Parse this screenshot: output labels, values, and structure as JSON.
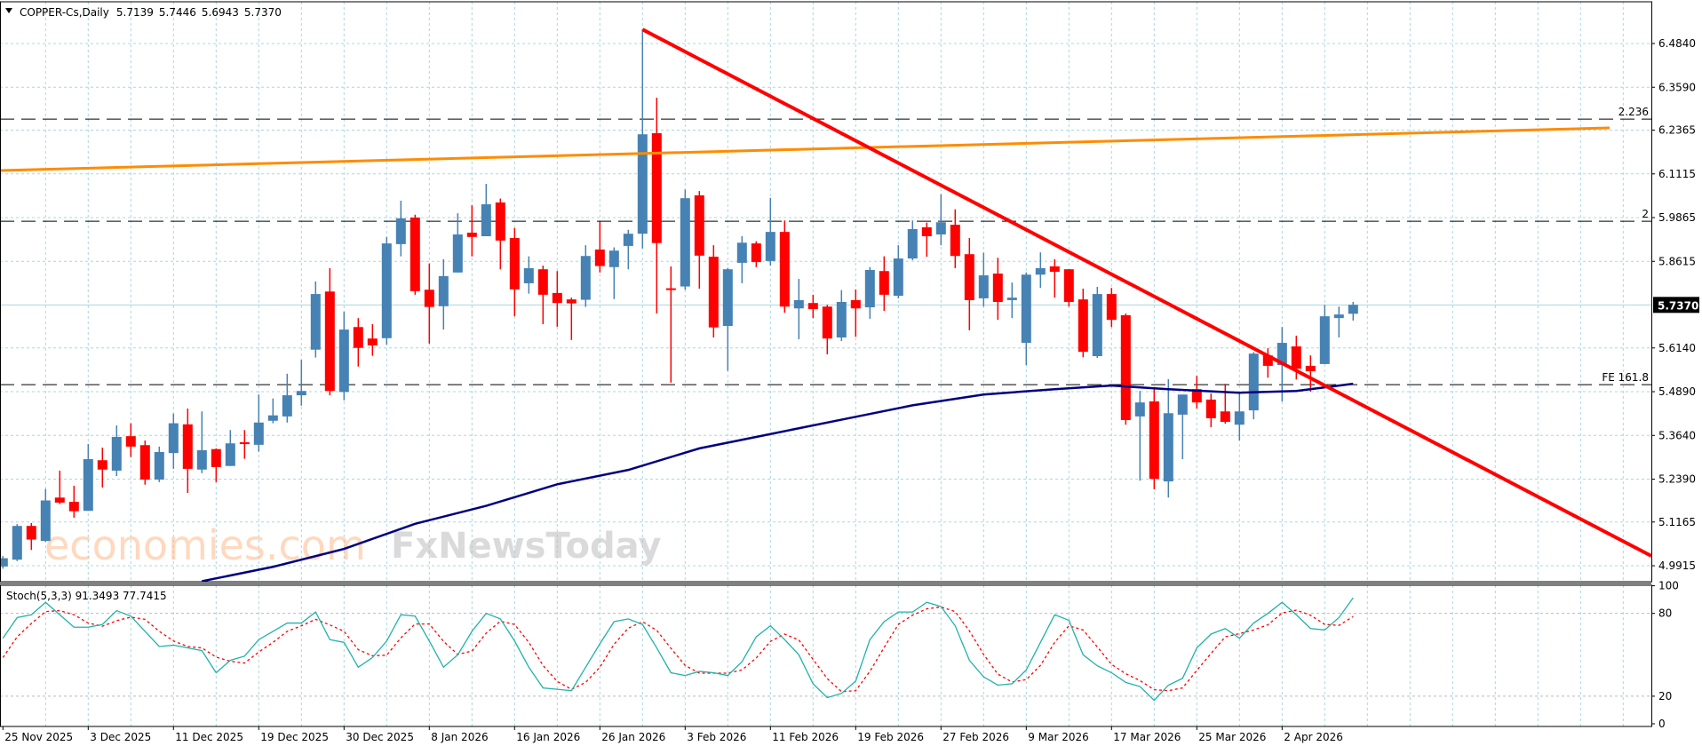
{
  "header": {
    "symbol_period": "COPPER-Cs,Daily",
    "open": "5.7139",
    "high": "5.7446",
    "low": "5.6943",
    "close": "5.7370"
  },
  "indicator_label": "Stoch(5,3,3) 91.3493 77.7415",
  "current_price_label": "5.7370",
  "watermarks": [
    "economies.com",
    "FxNewsToday"
  ],
  "colors": {
    "bull": "#4682B4",
    "bear": "#FF0000",
    "grid": "#A9D8DF",
    "ma": "#000080",
    "resistance": "#FF8C00",
    "trendline": "#FF0000",
    "stoch_k": "#20B2AA",
    "stoch_d": "#FF0000"
  },
  "chart_data": [
    {
      "type": "candlestick",
      "title": "COPPER-Cs,Daily",
      "price_axis_ticks": [
        "6.4840",
        "6.3590",
        "6.2365",
        "6.1115",
        "5.9865",
        "5.8615",
        "5.6140",
        "5.4890",
        "5.3640",
        "5.2390",
        "5.1165",
        "4.9915"
      ],
      "date_labels": [
        "25 Nov 2025",
        "3 Dec 2025",
        "11 Dec 2025",
        "19 Dec 2025",
        "30 Dec 2025",
        "8 Jan 2026",
        "16 Jan 2026",
        "26 Jan 2026",
        "3 Feb 2026",
        "11 Feb 2026",
        "19 Feb 2026",
        "27 Feb 2026",
        "9 Mar 2026",
        "17 Mar 2026",
        "25 Mar 2026",
        "2 Apr 2026"
      ],
      "date_label_every_bars": 6,
      "ylim": [
        4.99,
        6.53
      ],
      "ohlc": [
        [
          5.031,
          5.06,
          5.025,
          5.054
        ],
        [
          5.05,
          5.149,
          5.046,
          5.144
        ],
        [
          5.144,
          5.152,
          5.077,
          5.106
        ],
        [
          5.102,
          5.247,
          5.1,
          5.215
        ],
        [
          5.223,
          5.298,
          5.205,
          5.209
        ],
        [
          5.211,
          5.256,
          5.167,
          5.185
        ],
        [
          5.186,
          5.372,
          5.186,
          5.33
        ],
        [
          5.327,
          5.362,
          5.251,
          5.301
        ],
        [
          5.298,
          5.424,
          5.283,
          5.392
        ],
        [
          5.394,
          5.43,
          5.336,
          5.365
        ],
        [
          5.369,
          5.382,
          5.259,
          5.273
        ],
        [
          5.273,
          5.365,
          5.266,
          5.35
        ],
        [
          5.347,
          5.457,
          5.303,
          5.43
        ],
        [
          5.427,
          5.471,
          5.236,
          5.303
        ],
        [
          5.301,
          5.463,
          5.291,
          5.355
        ],
        [
          5.358,
          5.36,
          5.266,
          5.308
        ],
        [
          5.311,
          5.411,
          5.311,
          5.374
        ],
        [
          5.377,
          5.411,
          5.331,
          5.372
        ],
        [
          5.37,
          5.51,
          5.351,
          5.432
        ],
        [
          5.437,
          5.499,
          5.43,
          5.452
        ],
        [
          5.449,
          5.568,
          5.432,
          5.508
        ],
        [
          5.508,
          5.607,
          5.479,
          5.52
        ],
        [
          5.635,
          5.825,
          5.613,
          5.79
        ],
        [
          5.797,
          5.862,
          5.508,
          5.52
        ],
        [
          5.517,
          5.741,
          5.494,
          5.691
        ],
        [
          5.698,
          5.723,
          5.588,
          5.64
        ],
        [
          5.666,
          5.706,
          5.618,
          5.647
        ],
        [
          5.667,
          5.949,
          5.649,
          5.931
        ],
        [
          5.929,
          6.05,
          5.895,
          6.001
        ],
        [
          6.003,
          6.011,
          5.788,
          5.798
        ],
        [
          5.802,
          5.875,
          5.652,
          5.754
        ],
        [
          5.756,
          5.887,
          5.691,
          5.84
        ],
        [
          5.85,
          6.015,
          5.85,
          5.956
        ],
        [
          5.961,
          6.037,
          5.895,
          5.949
        ],
        [
          5.951,
          6.097,
          5.951,
          6.04
        ],
        [
          6.045,
          6.056,
          5.859,
          5.939
        ],
        [
          5.946,
          5.974,
          5.728,
          5.803
        ],
        [
          5.82,
          5.895,
          5.791,
          5.862
        ],
        [
          5.859,
          5.869,
          5.706,
          5.788
        ],
        [
          5.793,
          5.854,
          5.699,
          5.765
        ],
        [
          5.775,
          5.78,
          5.662,
          5.764
        ],
        [
          5.774,
          5.926,
          5.754,
          5.896
        ],
        [
          5.914,
          5.992,
          5.85,
          5.868
        ],
        [
          5.865,
          5.92,
          5.776,
          5.911
        ],
        [
          5.924,
          5.969,
          5.859,
          5.958
        ],
        [
          5.958,
          6.527,
          5.917,
          6.235
        ],
        [
          6.238,
          6.337,
          5.736,
          5.932
        ],
        [
          5.806,
          5.867,
          5.543,
          5.804
        ],
        [
          5.811,
          6.081,
          5.802,
          6.057
        ],
        [
          6.065,
          6.077,
          5.805,
          5.897
        ],
        [
          5.894,
          5.926,
          5.669,
          5.697
        ],
        [
          5.701,
          5.863,
          5.576,
          5.859
        ],
        [
          5.877,
          5.951,
          5.82,
          5.933
        ],
        [
          5.931,
          5.937,
          5.865,
          5.879
        ],
        [
          5.882,
          6.058,
          5.869,
          5.963
        ],
        [
          5.963,
          5.995,
          5.738,
          5.755
        ],
        [
          5.75,
          5.832,
          5.664,
          5.773
        ],
        [
          5.765,
          5.788,
          5.723,
          5.748
        ],
        [
          5.755,
          5.76,
          5.622,
          5.666
        ],
        [
          5.669,
          5.801,
          5.659,
          5.768
        ],
        [
          5.773,
          5.803,
          5.671,
          5.75
        ],
        [
          5.753,
          5.865,
          5.721,
          5.857
        ],
        [
          5.854,
          5.895,
          5.743,
          5.788
        ],
        [
          5.785,
          5.926,
          5.778,
          5.889
        ],
        [
          5.889,
          5.995,
          5.884,
          5.971
        ],
        [
          5.976,
          5.989,
          5.894,
          5.951
        ],
        [
          5.956,
          6.068,
          5.926,
          5.99
        ],
        [
          5.983,
          6.026,
          5.862,
          5.896
        ],
        [
          5.901,
          5.946,
          5.689,
          5.773
        ],
        [
          5.778,
          5.905,
          5.755,
          5.842
        ],
        [
          5.847,
          5.891,
          5.718,
          5.768
        ],
        [
          5.773,
          5.822,
          5.723,
          5.78
        ],
        [
          5.654,
          5.85,
          5.592,
          5.844
        ],
        [
          5.844,
          5.906,
          5.807,
          5.862
        ],
        [
          5.867,
          5.887,
          5.78,
          5.852
        ],
        [
          5.859,
          5.859,
          5.755,
          5.768
        ],
        [
          5.775,
          5.805,
          5.614,
          5.629
        ],
        [
          5.617,
          5.81,
          5.612,
          5.79
        ],
        [
          5.79,
          5.807,
          5.698,
          5.718
        ],
        [
          5.731,
          5.736,
          5.426,
          5.439
        ],
        [
          5.449,
          5.52,
          5.27,
          5.488
        ],
        [
          5.491,
          5.53,
          5.246,
          5.275
        ],
        [
          5.268,
          5.553,
          5.223,
          5.458
        ],
        [
          5.454,
          5.51,
          5.33,
          5.51
        ],
        [
          5.525,
          5.562,
          5.471,
          5.488
        ],
        [
          5.496,
          5.513,
          5.419,
          5.444
        ],
        [
          5.463,
          5.54,
          5.429,
          5.434
        ],
        [
          5.426,
          5.518,
          5.382,
          5.463
        ],
        [
          5.466,
          5.628,
          5.441,
          5.624
        ],
        [
          5.619,
          5.639,
          5.557,
          5.59
        ],
        [
          5.592,
          5.698,
          5.491,
          5.654
        ],
        [
          5.644,
          5.674,
          5.552,
          5.582
        ],
        [
          5.59,
          5.619,
          5.518,
          5.575
        ],
        [
          5.595,
          5.76,
          5.595,
          5.728
        ],
        [
          5.723,
          5.755,
          5.669,
          5.733
        ],
        [
          5.735,
          5.768,
          5.716,
          5.76
        ]
      ],
      "moving_average": [
        [
          15,
          4.99
        ],
        [
          20,
          5.03
        ],
        [
          25,
          5.08
        ],
        [
          30,
          5.15
        ],
        [
          35,
          5.2
        ],
        [
          40,
          5.26
        ],
        [
          45,
          5.3
        ],
        [
          50,
          5.36
        ],
        [
          55,
          5.4
        ],
        [
          60,
          5.44
        ],
        [
          65,
          5.48
        ],
        [
          70,
          5.51
        ],
        [
          75,
          5.525
        ],
        [
          79,
          5.535
        ],
        [
          83,
          5.525
        ],
        [
          88,
          5.515
        ],
        [
          92,
          5.52
        ],
        [
          96,
          5.54
        ]
      ],
      "levels": [
        {
          "label": "2.236",
          "price": 6.268
        },
        {
          "label": "2",
          "price": 5.976
        },
        {
          "label": "FE 161.8",
          "price": 5.509
        }
      ],
      "current_price": 5.737
    },
    {
      "type": "line",
      "title": "Stoch(5,3,3)",
      "ylim": [
        0,
        100
      ],
      "y_ticks": [
        "100",
        "80",
        "20",
        "0"
      ],
      "levels": [
        80,
        20
      ],
      "series": [
        {
          "name": "%K",
          "values": [
            62,
            77,
            79,
            88,
            79,
            70,
            70,
            72,
            82,
            78,
            67,
            56,
            57,
            55,
            53,
            37,
            46,
            49,
            61,
            67,
            73,
            73,
            81,
            61,
            59,
            41,
            48,
            60,
            79,
            78,
            60,
            41,
            50,
            67,
            80,
            76,
            60,
            41,
            26,
            25,
            24,
            41,
            58,
            74,
            76,
            72,
            55,
            37,
            35,
            38,
            37,
            35,
            45,
            63,
            71,
            61,
            50,
            29,
            19,
            22,
            31,
            61,
            74,
            81,
            81,
            88,
            85,
            71,
            46,
            34,
            28,
            29,
            39,
            59,
            79,
            75,
            50,
            42,
            37,
            30,
            27,
            17,
            28,
            33,
            55,
            65,
            69,
            62,
            73,
            80,
            88,
            79,
            69,
            68,
            77,
            91.3
          ]
        },
        {
          "name": "%D",
          "values": [
            48,
            63,
            72.7,
            81.3,
            82,
            79,
            73,
            70.7,
            74.7,
            77.3,
            75.7,
            67,
            60,
            56,
            55,
            48.3,
            45.3,
            44,
            52,
            59,
            67,
            71,
            75.7,
            71.7,
            67,
            53.7,
            49.3,
            49.7,
            62.3,
            72.3,
            72.3,
            59.7,
            50.3,
            52.7,
            65.7,
            74.3,
            72,
            59,
            42.3,
            30.7,
            25,
            30,
            41,
            57.7,
            69.3,
            74,
            67.7,
            54.7,
            42.3,
            36.7,
            36.7,
            36.7,
            39,
            47.7,
            59.7,
            65,
            60.7,
            46.7,
            32.7,
            23.3,
            24,
            38,
            55.3,
            72,
            78.7,
            83.3,
            84.7,
            81.3,
            67.3,
            50.3,
            36,
            30.3,
            32,
            42.3,
            59,
            71,
            68,
            55.7,
            43,
            36.3,
            31.3,
            24.7,
            24,
            26,
            38.7,
            51,
            63,
            65.3,
            68,
            71.7,
            80.3,
            82.3,
            78.7,
            72,
            71.3,
            77.7
          ]
        }
      ]
    }
  ]
}
